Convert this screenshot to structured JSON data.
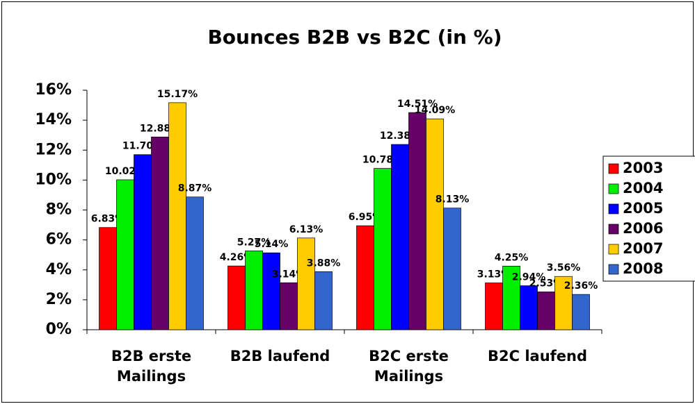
{
  "chart_data": {
    "type": "bar",
    "title": "Bounces B2B vs B2C (in %)",
    "categories": [
      "B2B erste Mailings",
      "B2B laufend",
      "B2C erste Mailings",
      "B2C laufend"
    ],
    "series": [
      {
        "name": "2003",
        "color": "#ff0000",
        "values": [
          6.83,
          4.26,
          6.95,
          3.13
        ],
        "value_labels": [
          "6.83%",
          "4.26%",
          "6.95%",
          "3.13%"
        ]
      },
      {
        "name": "2004",
        "color": "#00ee00",
        "values": [
          10.02,
          5.27,
          10.78,
          4.25
        ],
        "value_labels": [
          "10.02%",
          "5.27%",
          "10.78%",
          "4.25%"
        ]
      },
      {
        "name": "2005",
        "color": "#0000ff",
        "values": [
          11.7,
          5.14,
          12.38,
          2.94
        ],
        "value_labels": [
          "11.70%",
          "5.14%",
          "12.38%",
          "2.94%"
        ]
      },
      {
        "name": "2006",
        "color": "#660066",
        "values": [
          12.88,
          3.14,
          14.51,
          2.53
        ],
        "value_labels": [
          "12.88%",
          "3.14%",
          "14.51%",
          "2.53%"
        ]
      },
      {
        "name": "2007",
        "color": "#ffcc00",
        "values": [
          15.17,
          6.13,
          14.09,
          3.56
        ],
        "value_labels": [
          "15.17%",
          "6.13%",
          "14.09%",
          "3.56%"
        ]
      },
      {
        "name": "2008",
        "color": "#3366cc",
        "values": [
          8.87,
          3.88,
          8.13,
          2.36
        ],
        "value_labels": [
          "8.87%",
          "3.88%",
          "8.13%",
          "2.36%"
        ]
      }
    ],
    "ylim": [
      0,
      16
    ],
    "yticks": [
      {
        "value": 0,
        "label": "0%"
      },
      {
        "value": 2,
        "label": "2%"
      },
      {
        "value": 4,
        "label": "4%"
      },
      {
        "value": 6,
        "label": "6%"
      },
      {
        "value": 8,
        "label": "8%"
      },
      {
        "value": 10,
        "label": "10%"
      },
      {
        "value": 12,
        "label": "12%"
      },
      {
        "value": 14,
        "label": "14%"
      },
      {
        "value": 16,
        "label": "16%"
      }
    ],
    "legend": "right"
  }
}
